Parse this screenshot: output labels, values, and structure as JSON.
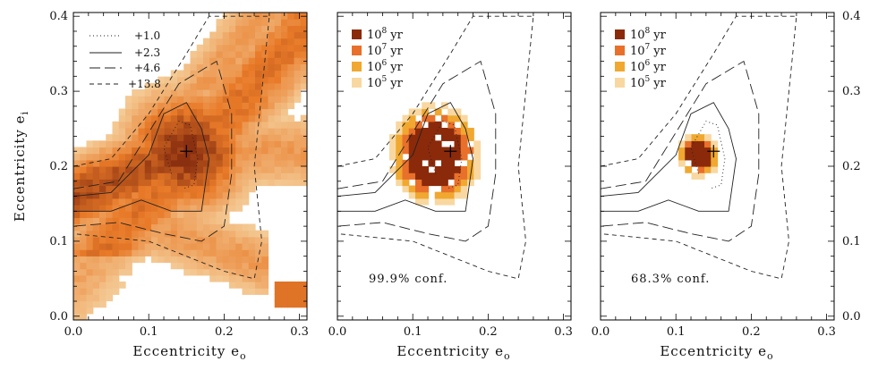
{
  "chart_data": [
    {
      "type": "heatmap",
      "panel": "left",
      "xlabel": "Eccentricity",
      "xlabel_sub": "o",
      "ylabel": "Eccentricity",
      "ylabel_sub": "i",
      "xlim": [
        0.0,
        0.31
      ],
      "ylim": [
        -0.005,
        0.405
      ],
      "xticks": [
        "0.0",
        "0.1",
        "0.2",
        "0.3"
      ],
      "yticks": [
        "0.0",
        "0.1",
        "0.2",
        "0.3",
        "0.4"
      ],
      "best_fit": {
        "x": 0.15,
        "y": 0.22
      },
      "legend": [
        {
          "style": "dotted",
          "label": "+1.0"
        },
        {
          "style": "solid",
          "label": "+2.3"
        },
        {
          "style": "long-dash",
          "label": "+4.6"
        },
        {
          "style": "short-dash",
          "label": "+13.8"
        }
      ]
    },
    {
      "type": "heatmap",
      "panel": "middle",
      "xlabel": "Eccentricity",
      "xlabel_sub": "o",
      "xticks": [
        "0.0",
        "0.1",
        "0.2",
        "0.3"
      ],
      "annotation": "99.9% conf.",
      "best_fit": {
        "x": 0.15,
        "y": 0.22
      },
      "legend": [
        {
          "base": "10",
          "exp": "8",
          "unit": "yr",
          "color": "#8a2a0a"
        },
        {
          "base": "10",
          "exp": "7",
          "unit": "yr",
          "color": "#e8702a"
        },
        {
          "base": "10",
          "exp": "6",
          "unit": "yr",
          "color": "#f0a830"
        },
        {
          "base": "10",
          "exp": "5",
          "unit": "yr",
          "color": "#f8d8a0"
        }
      ]
    },
    {
      "type": "heatmap",
      "panel": "right",
      "xlabel": "Eccentricity",
      "xlabel_sub": "o",
      "xticks": [
        "0.0",
        "0.1",
        "0.2",
        "0.3"
      ],
      "yticks": [
        "0.0",
        "0.1",
        "0.2",
        "0.3",
        "0.4"
      ],
      "annotation": "68.3% conf.",
      "best_fit": {
        "x": 0.15,
        "y": 0.22
      },
      "legend": [
        {
          "base": "10",
          "exp": "8",
          "unit": "yr",
          "color": "#8a2a0a"
        },
        {
          "base": "10",
          "exp": "7",
          "unit": "yr",
          "color": "#e8702a"
        },
        {
          "base": "10",
          "exp": "6",
          "unit": "yr",
          "color": "#f0a830"
        },
        {
          "base": "10",
          "exp": "5",
          "unit": "yr",
          "color": "#f8d8a0"
        }
      ]
    }
  ],
  "colors": {
    "density_low": "#f8e4b8",
    "density_mid": "#e87a28",
    "density_high": "#8a3010",
    "contour": "#222222"
  }
}
